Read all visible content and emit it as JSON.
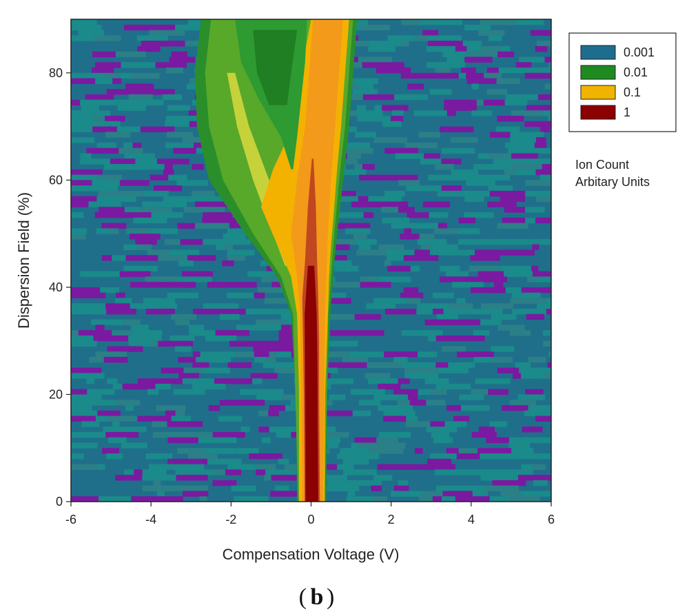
{
  "chart_data": {
    "type": "heatmap",
    "xlabel": "Compensation Voltage (V)",
    "ylabel": "Dispersion Field (%)",
    "xlim": [
      -6,
      6
    ],
    "ylim": [
      0,
      90
    ],
    "x_ticks": [
      -6,
      -4,
      -2,
      0,
      2,
      4,
      6
    ],
    "y_ticks": [
      0,
      20,
      40,
      60,
      80
    ],
    "grid": false,
    "scale": "log",
    "legend": {
      "placement": "right",
      "entries": [
        {
          "label": "0.001",
          "color": "#1e6c8e"
        },
        {
          "label": "0.01",
          "color": "#1f8a1f"
        },
        {
          "label": "0.1",
          "color": "#f0b400"
        },
        {
          "label": "1",
          "color": "#8b0000"
        }
      ],
      "note_lines": [
        "Ion Count",
        "Arbitary Units"
      ]
    },
    "peaks": [
      {
        "dispersion_field": 0,
        "cv_center": 0.0,
        "level": 1
      },
      {
        "dispersion_field": 20,
        "cv_center": 0.0,
        "level": 1
      },
      {
        "dispersion_field": 40,
        "cv_center": -0.05,
        "level": 1
      },
      {
        "dispersion_field": 60,
        "cv_center": 0.05,
        "level": 0.1
      },
      {
        "dispersion_field": 60,
        "cv_center": -1.2,
        "level": 0.01
      },
      {
        "dispersion_field": 80,
        "cv_center": 0.3,
        "level": 0.1
      },
      {
        "dispersion_field": 80,
        "cv_center": -1.0,
        "level": 0.01
      }
    ],
    "background_level": 0.001,
    "colors": {
      "background": "#1f6f8b",
      "noise_low": "#7a1aa0",
      "noise_mid": "#1a8a8a",
      "level_001": "#1e6c8e",
      "level_01": "#1f8a1f",
      "level_1": "#f0b400",
      "level_10": "#8b0000"
    }
  },
  "panel_label": "b"
}
